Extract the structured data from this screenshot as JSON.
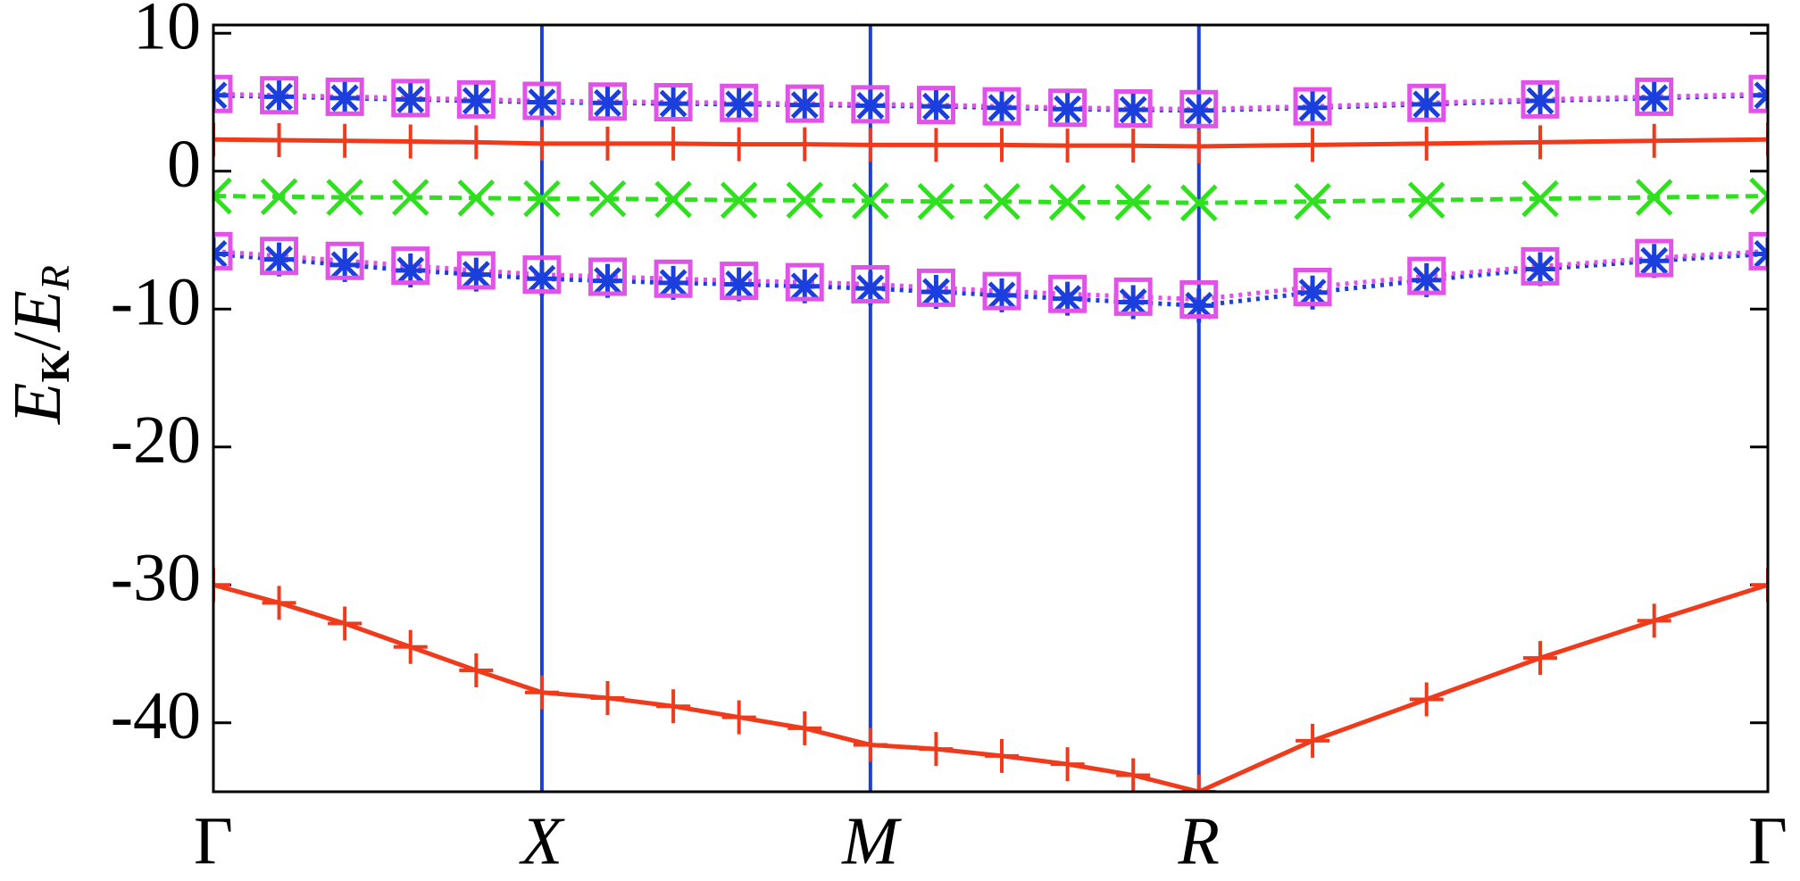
{
  "chart_data": {
    "type": "line",
    "ylabel": [
      "E",
      "K",
      "/",
      "E",
      "R"
    ],
    "x": [
      0,
      0.2,
      0.4,
      0.6,
      0.8,
      1.0,
      1.2,
      1.4,
      1.6,
      1.8,
      2.0,
      2.2,
      2.4,
      2.6,
      2.8,
      3.0,
      3.346,
      3.693,
      4.039,
      4.386,
      4.732
    ],
    "xlim": [
      0,
      4.732
    ],
    "xticks": [
      {
        "value": 0,
        "label": "Γ"
      },
      {
        "value": 1,
        "label": "X"
      },
      {
        "value": 2,
        "label": "M"
      },
      {
        "value": 3,
        "label": "R"
      },
      {
        "value": 4.732,
        "label": "Γ"
      }
    ],
    "ylim": [
      -45,
      10.6
    ],
    "yticks": [
      10,
      0,
      -10,
      -20,
      -30,
      -40
    ],
    "grid": false,
    "tick_vlines": true,
    "vline_color": "#1a3fdc",
    "series": [
      {
        "color": "#f03a1c",
        "style": "solid",
        "marker": "plus",
        "values": [
          -30,
          -31.3,
          -32.8,
          -34.5,
          -36.2,
          -37.8,
          -38.2,
          -38.8,
          -39.6,
          -40.4,
          -41.6,
          -41.9,
          -42.4,
          -43,
          -43.8,
          -45,
          -41.3,
          -38.3,
          -35.3,
          -32.6,
          -30
        ]
      },
      {
        "color": "#f03a1c",
        "style": "solid",
        "marker": "plus",
        "values": [
          2.3,
          2.25,
          2.2,
          2.15,
          2.1,
          2.0,
          2.0,
          2.0,
          1.95,
          1.95,
          1.9,
          1.9,
          1.9,
          1.85,
          1.85,
          1.8,
          1.9,
          2.0,
          2.1,
          2.2,
          2.3
        ]
      },
      {
        "color": "#2ee01e",
        "style": "dashed",
        "marker": "cross",
        "values": [
          -1.8,
          -1.85,
          -1.9,
          -1.9,
          -1.95,
          -2.0,
          -2.0,
          -2.05,
          -2.1,
          -2.1,
          -2.15,
          -2.2,
          -2.2,
          -2.25,
          -2.25,
          -2.3,
          -2.2,
          -2.1,
          -2.0,
          -1.9,
          -1.8
        ]
      },
      {
        "color": "#1a3fdc",
        "style": "dotted",
        "marker": "asterisk",
        "values": [
          5.5,
          5.4,
          5.3,
          5.2,
          5.1,
          5.0,
          4.95,
          4.9,
          4.85,
          4.8,
          4.75,
          4.7,
          4.6,
          4.5,
          4.45,
          4.4,
          4.6,
          4.85,
          5.1,
          5.3,
          5.5
        ]
      },
      {
        "color": "#e052e8",
        "style": "dotted",
        "marker": "square",
        "values": [
          5.6,
          5.5,
          5.4,
          5.3,
          5.2,
          5.1,
          5.05,
          5.0,
          4.95,
          4.9,
          4.85,
          4.8,
          4.7,
          4.6,
          4.55,
          4.5,
          4.7,
          4.95,
          5.2,
          5.4,
          5.6
        ]
      },
      {
        "color": "#1a3fdc",
        "style": "dotted",
        "marker": "asterisk",
        "values": [
          -6.0,
          -6.4,
          -6.8,
          -7.2,
          -7.5,
          -7.8,
          -7.95,
          -8.1,
          -8.2,
          -8.35,
          -8.5,
          -8.75,
          -9.0,
          -9.25,
          -9.5,
          -9.75,
          -8.8,
          -7.9,
          -7.1,
          -6.5,
          -6.0
        ]
      },
      {
        "color": "#e052e8",
        "style": "dotted",
        "marker": "square",
        "values": [
          -5.8,
          -6.15,
          -6.5,
          -6.85,
          -7.2,
          -7.5,
          -7.65,
          -7.8,
          -7.95,
          -8.05,
          -8.2,
          -8.45,
          -8.7,
          -8.9,
          -9.1,
          -9.3,
          -8.4,
          -7.6,
          -6.9,
          -6.3,
          -5.8
        ]
      }
    ]
  }
}
